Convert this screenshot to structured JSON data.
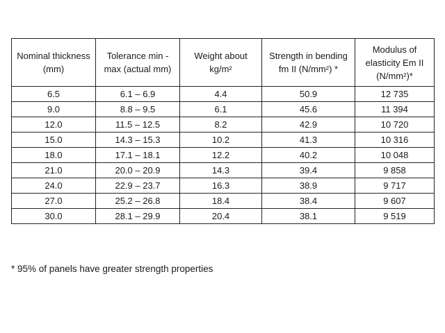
{
  "table": {
    "headers": [
      "Nominal thickness (mm)",
      "Tolerance min - max (actual mm)",
      "Weight about kg/m²",
      "Strength in bending fm II (N/mm²) *",
      "Modulus of elasticity Em II (N/mm²)*"
    ],
    "rows": [
      [
        "6.5",
        "6.1 – 6.9",
        "4.4",
        "50.9",
        "12 735"
      ],
      [
        "9.0",
        "8.8 – 9.5",
        "6.1",
        "45.6",
        "11 394"
      ],
      [
        "12.0",
        "11.5 – 12.5",
        "8.2",
        "42.9",
        "10 720"
      ],
      [
        "15.0",
        "14.3 – 15.3",
        "10.2",
        "41.3",
        "10 316"
      ],
      [
        "18.0",
        "17.1 – 18.1",
        "12.2",
        "40.2",
        "10 048"
      ],
      [
        "21.0",
        "20.0 – 20.9",
        "14.3",
        "39.4",
        "9 858"
      ],
      [
        "24.0",
        "22.9 – 23.7",
        "16.3",
        "38.9",
        "9 717"
      ],
      [
        "27.0",
        "25.2 – 26.8",
        "18.4",
        "38.4",
        "9 607"
      ],
      [
        "30.0",
        "28.1 – 29.9",
        "20.4",
        "38.1",
        "9 519"
      ]
    ]
  },
  "footnote": "* 95% of panels have greater strength properties"
}
